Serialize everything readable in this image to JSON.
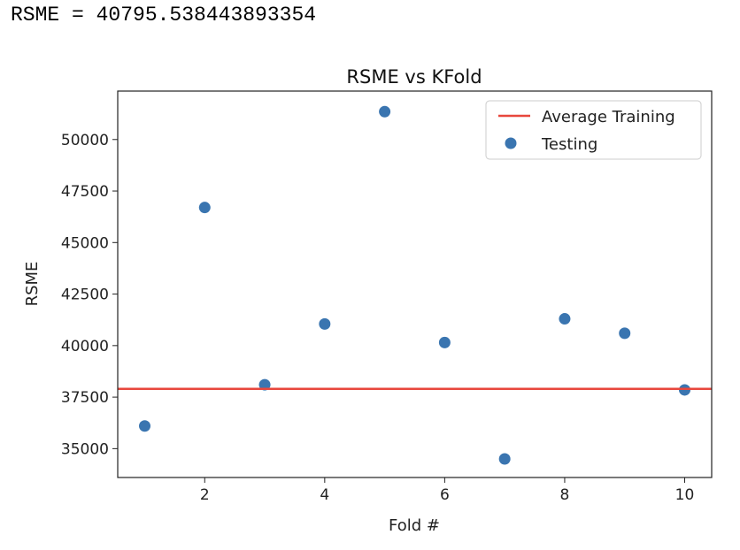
{
  "output": {
    "text": "RSME = 40795.538443893354"
  },
  "chart_data": {
    "type": "scatter",
    "title": "RSME vs KFold",
    "xlabel": "Fold #",
    "ylabel": "RSME",
    "xlim": [
      0.55,
      10.45
    ],
    "ylim": [
      33600,
      52350
    ],
    "x_ticks": [
      2,
      4,
      6,
      8,
      10
    ],
    "y_ticks": [
      35000,
      37500,
      40000,
      42500,
      45000,
      47500,
      50000
    ],
    "grid": false,
    "legend_position": "top-right",
    "series": [
      {
        "name": "Testing",
        "kind": "scatter",
        "color": "#3a75b0",
        "x": [
          1,
          2,
          3,
          4,
          5,
          6,
          7,
          8,
          9,
          10
        ],
        "y": [
          36100,
          46700,
          38100,
          41050,
          51350,
          40150,
          34500,
          41300,
          40600,
          37850
        ]
      },
      {
        "name": "Average Training",
        "kind": "hline",
        "color": "#e8473d",
        "y": 37900
      }
    ],
    "legend_order": [
      "Average Training",
      "Testing"
    ]
  }
}
